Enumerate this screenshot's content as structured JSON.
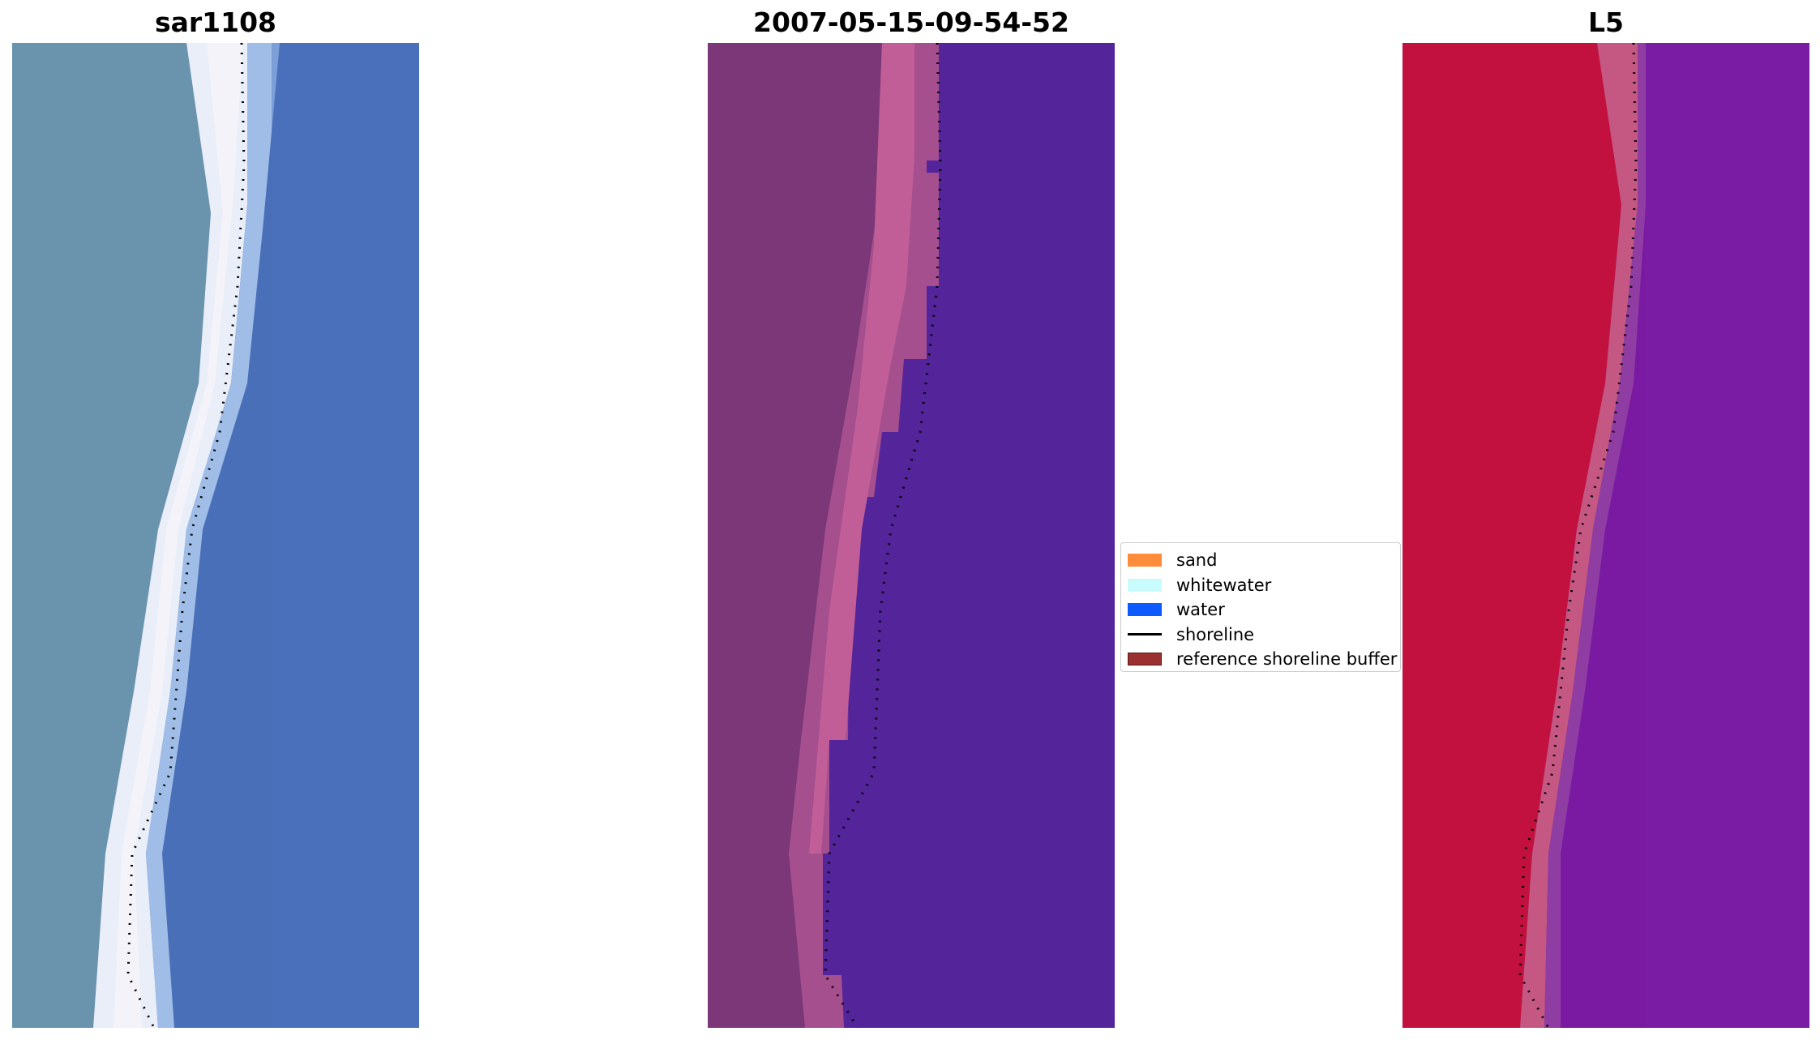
{
  "panels": [
    {
      "title": "sar1108"
    },
    {
      "title": "2007-05-15-09-54-52"
    },
    {
      "title": "L5"
    }
  ],
  "legend": {
    "items": [
      {
        "label": "sand",
        "color": "#ff8c3a"
      },
      {
        "label": "whitewater",
        "color": "#c8fbfb"
      },
      {
        "label": "water",
        "color": "#0d5bff"
      },
      {
        "label": "shoreline",
        "color": "#000000"
      },
      {
        "label": "reference shoreline buffer",
        "color": "#9a3030"
      }
    ]
  }
}
